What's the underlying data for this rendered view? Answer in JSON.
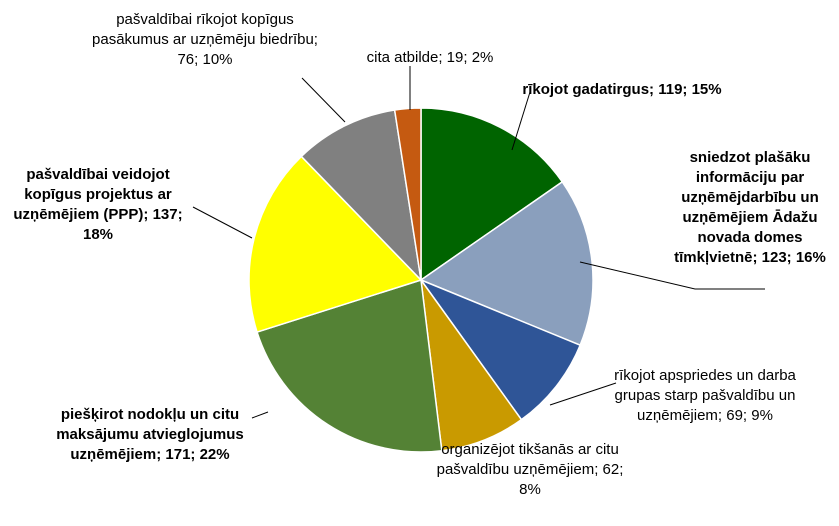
{
  "chart_data": {
    "type": "pie",
    "values": [
      119,
      123,
      69,
      62,
      171,
      137,
      76,
      19
    ],
    "value_labels": [
      "rīkojot gadatirgus; 119; 15%",
      "sniedzot plašāku informāciju par uzņēmējdarbību un uzņēmējiem Ādažu novada domes tīmkļvietnē; 123; 16%",
      "rīkojot apspriedes un darba grupas starp pašvaldību un uzņēmējiem; 69; 9%",
      "organizējot tikšanās ar citu pašvaldību uzņēmējiem; 62; 8%",
      "piešķirot nodokļu un citu maksājumu atvieglojumus uzņēmējiem; 171; 22%",
      "pašvaldībai veidojot kopīgus projektus ar uzņēmējiem (PPP); 137; 18%",
      "pašvaldībai rīkojot kopīgus pasākumus ar uzņēmēju biedrību; 76; 10%",
      "cita atbilde; 19; 2%"
    ],
    "colors": [
      "#006400",
      "#8a9fbd",
      "#2f5597",
      "#c99a00",
      "#548235",
      "#ffff00",
      "#808080",
      "#c55a11"
    ]
  }
}
